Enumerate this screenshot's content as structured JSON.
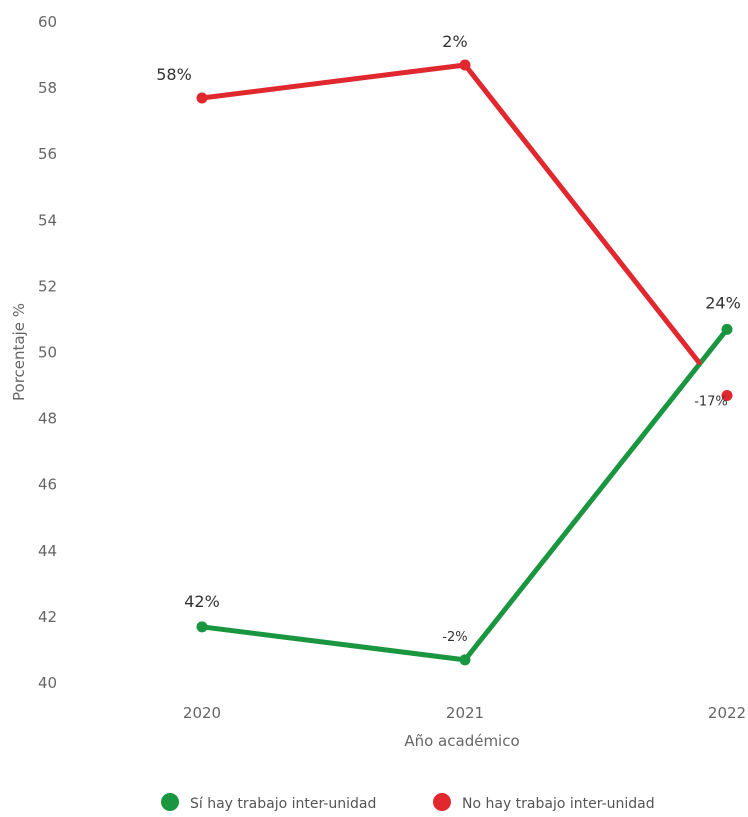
{
  "chart_data": {
    "type": "line",
    "xlabel": "Año académico",
    "ylabel": "Porcentaje %",
    "categories": [
      "2020",
      "2021",
      "2022"
    ],
    "ylim": [
      40,
      60
    ],
    "yticks": [
      40,
      42,
      44,
      46,
      48,
      50,
      52,
      54,
      56,
      58,
      60
    ],
    "grid": false,
    "legend_position": "bottom",
    "series": [
      {
        "name": "Sí hay trabajo inter-unidad",
        "color": "#1a9641",
        "values": [
          41.7,
          40.7,
          50.7
        ],
        "labels": [
          "42%",
          "-2%",
          "24%"
        ]
      },
      {
        "name": "No hay trabajo inter-unidad",
        "color": "#e0282e",
        "values": [
          57.7,
          58.7,
          48.7
        ],
        "labels": [
          "58%",
          "2%",
          "-17%"
        ]
      }
    ]
  }
}
